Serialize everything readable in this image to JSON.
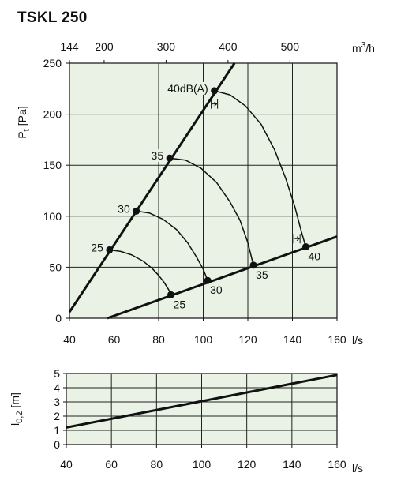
{
  "page": {
    "title": "TSKL 250"
  },
  "chart_data": [
    {
      "type": "line",
      "title": "TSKL 250",
      "xlabel": "l/s",
      "ylabel": "Pt [Pa]",
      "ylabel_main": "P",
      "ylabel_sub": "t",
      "ylabel_unit": "[Pa]",
      "x2label": "m3/h",
      "x2label_main": "m",
      "x2label_sup": "3",
      "x2label_rest": "/h",
      "xlim": [
        40,
        160
      ],
      "ylim": [
        0,
        250
      ],
      "xticks": [
        40,
        60,
        80,
        100,
        120,
        140,
        160
      ],
      "yticks": [
        0,
        50,
        100,
        150,
        200,
        250
      ],
      "x2ticks": [
        144,
        200,
        300,
        400,
        500
      ],
      "grid": true,
      "background": "#e9f2e4",
      "series": [
        {
          "kind": "system-curve",
          "x": [
            40,
            114
          ],
          "y": [
            6,
            250
          ]
        },
        {
          "kind": "system-curve",
          "x": [
            57,
            160
          ],
          "y": [
            0,
            80
          ]
        },
        {
          "kind": "sound-curve",
          "label": "25",
          "x": [
            58,
            63,
            68,
            73,
            77,
            80,
            82.5,
            84.5,
            85.5
          ],
          "y": [
            67,
            65.5,
            62,
            56,
            49,
            42,
            35,
            28,
            23
          ]
        },
        {
          "kind": "sound-curve",
          "label": "30",
          "x": [
            70,
            76,
            82,
            88,
            93,
            97,
            100,
            102
          ],
          "y": [
            105,
            103,
            97,
            87,
            74,
            60,
            48,
            37
          ]
        },
        {
          "kind": "sound-curve",
          "label": "35",
          "x": [
            85,
            92,
            99,
            106,
            112,
            116.5,
            120,
            122.5
          ],
          "y": [
            157,
            155,
            147,
            133,
            114,
            96,
            74,
            52
          ]
        },
        {
          "kind": "sound-curve",
          "label": "40dB(A)",
          "end_label": "40",
          "x": [
            105,
            112,
            119,
            126,
            132,
            137,
            141,
            144,
            146
          ],
          "y": [
            223,
            219,
            208,
            190,
            165,
            137,
            110,
            85,
            70
          ]
        }
      ],
      "points": [
        {
          "x": 58,
          "y": 67,
          "label": "25"
        },
        {
          "x": 70,
          "y": 105,
          "label": "30"
        },
        {
          "x": 85,
          "y": 157,
          "label": "35"
        },
        {
          "x": 105,
          "y": 223,
          "label": "40dB(A)"
        },
        {
          "x": 85.5,
          "y": 23,
          "label": "25"
        },
        {
          "x": 102,
          "y": 37,
          "label": "30"
        },
        {
          "x": 122.5,
          "y": 52,
          "label": "35"
        },
        {
          "x": 146,
          "y": 70,
          "label": "40"
        }
      ],
      "tolerance_markers": [
        {
          "x": 105,
          "y": 210
        },
        {
          "x": 142,
          "y": 78
        }
      ]
    },
    {
      "type": "line",
      "xlabel": "l/s",
      "ylabel": "l0,2 [m]",
      "ylabel_main": "l",
      "ylabel_sub": "0,2",
      "ylabel_unit": "[m]",
      "xlim": [
        40,
        160
      ],
      "ylim": [
        0,
        5
      ],
      "xticks": [
        40,
        60,
        80,
        100,
        120,
        140,
        160
      ],
      "yticks": [
        0,
        1,
        2,
        3,
        4,
        5
      ],
      "grid": true,
      "background": "#e9f2e4",
      "series": [
        {
          "kind": "throw",
          "x": [
            40,
            160
          ],
          "y": [
            1.2,
            4.9
          ]
        }
      ]
    }
  ]
}
